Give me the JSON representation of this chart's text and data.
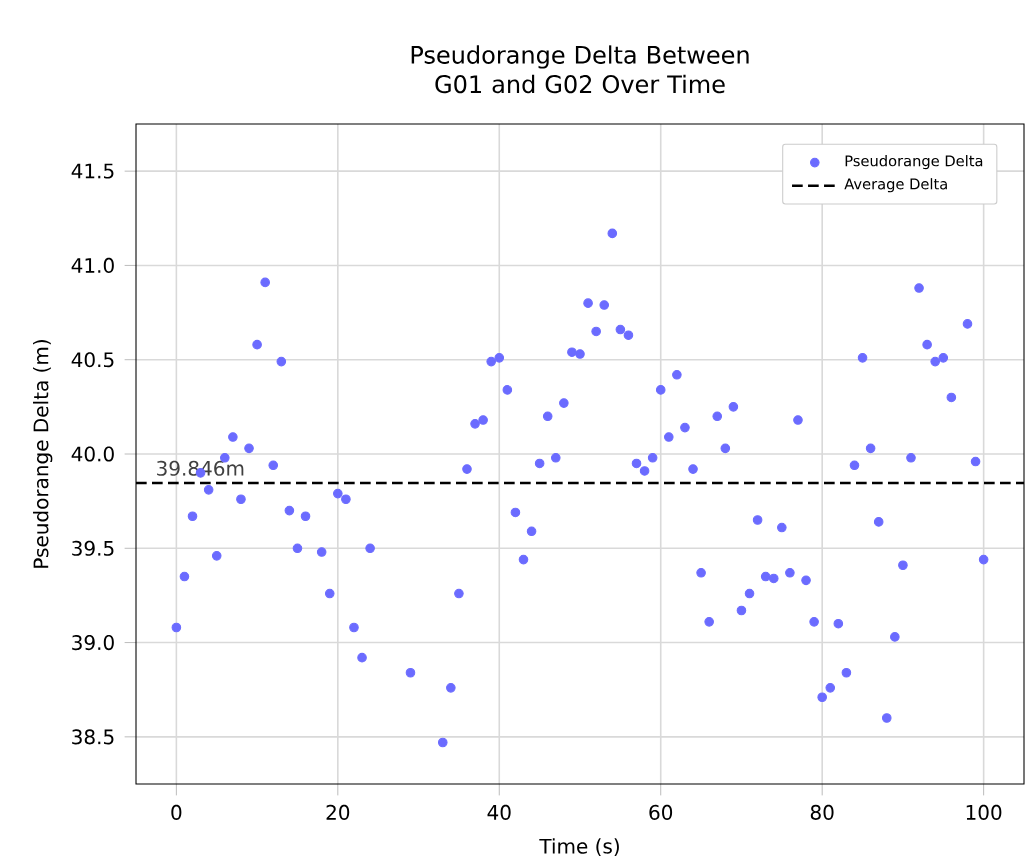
{
  "chart_data": {
    "type": "scatter",
    "title": "Pseudorange Delta Between G01 and G02 Over Time",
    "xlabel": "Time (s)",
    "ylabel": "Pseudorange Delta (m)",
    "x": [
      0,
      1,
      2,
      3,
      4,
      5,
      6,
      7,
      8,
      9,
      10,
      11,
      12,
      13,
      14,
      15,
      16,
      18,
      19,
      20,
      21,
      22,
      23,
      24,
      29,
      33,
      34,
      35,
      36,
      37,
      38,
      39,
      40,
      41,
      42,
      43,
      44,
      45,
      46,
      47,
      48,
      49,
      50,
      51,
      52,
      53,
      54,
      55,
      56,
      57,
      58,
      59,
      60,
      61,
      62,
      63,
      64,
      65,
      66,
      67,
      68,
      69,
      70,
      71,
      72,
      73,
      74,
      75,
      76,
      77,
      78,
      79,
      80,
      81,
      82,
      83,
      84,
      85,
      86,
      87,
      88,
      89,
      90,
      91,
      92,
      93,
      94,
      95,
      96,
      98,
      99,
      100
    ],
    "series": [
      {
        "name": "Pseudorange Delta",
        "color": "#6b6bff",
        "values": [
          39.08,
          39.35,
          39.67,
          39.9,
          39.81,
          39.46,
          39.98,
          40.09,
          39.76,
          40.03,
          40.58,
          40.91,
          39.94,
          40.49,
          39.7,
          39.5,
          39.67,
          39.48,
          39.26,
          39.79,
          39.76,
          39.08,
          38.92,
          39.5,
          38.84,
          38.47,
          38.76,
          39.26,
          39.92,
          40.16,
          40.18,
          40.49,
          40.51,
          40.34,
          39.69,
          39.44,
          39.59,
          39.95,
          40.2,
          39.98,
          40.27,
          40.54,
          40.53,
          40.8,
          40.65,
          40.79,
          41.17,
          40.66,
          40.63,
          39.95,
          39.91,
          39.98,
          40.34,
          40.09,
          40.42,
          40.14,
          39.92,
          39.37,
          39.11,
          40.2,
          40.03,
          40.25,
          39.17,
          39.26,
          39.65,
          39.35,
          39.34,
          39.61,
          39.37,
          40.18,
          39.33,
          39.11,
          38.71,
          38.76,
          39.1,
          38.84,
          39.94,
          40.51,
          40.03,
          39.64,
          38.6,
          39.03,
          39.41,
          39.98,
          40.88,
          40.58,
          40.49,
          40.51,
          40.3,
          40.69,
          39.96,
          39.44
        ]
      }
    ],
    "ref_lines": [
      {
        "axis": "y",
        "value": 39.846,
        "label": "Average Delta",
        "color": "#000000",
        "line_style": "dashed"
      }
    ],
    "annotations": [
      {
        "text": "39.846m",
        "x": 0,
        "y": 39.846
      }
    ],
    "xlim": [
      -5,
      105
    ],
    "ylim": [
      38.25,
      41.75
    ],
    "xticks": [
      0,
      20,
      40,
      60,
      80,
      100
    ],
    "yticks": [
      38.5,
      {
        "value": 39,
        "label": "39.0"
      },
      39.5,
      {
        "value": 40,
        "label": "40.0"
      },
      40.5,
      {
        "value": 41,
        "label": "41.0"
      },
      41.5
    ],
    "grid": true,
    "legend": "top right",
    "marker": "circle"
  }
}
